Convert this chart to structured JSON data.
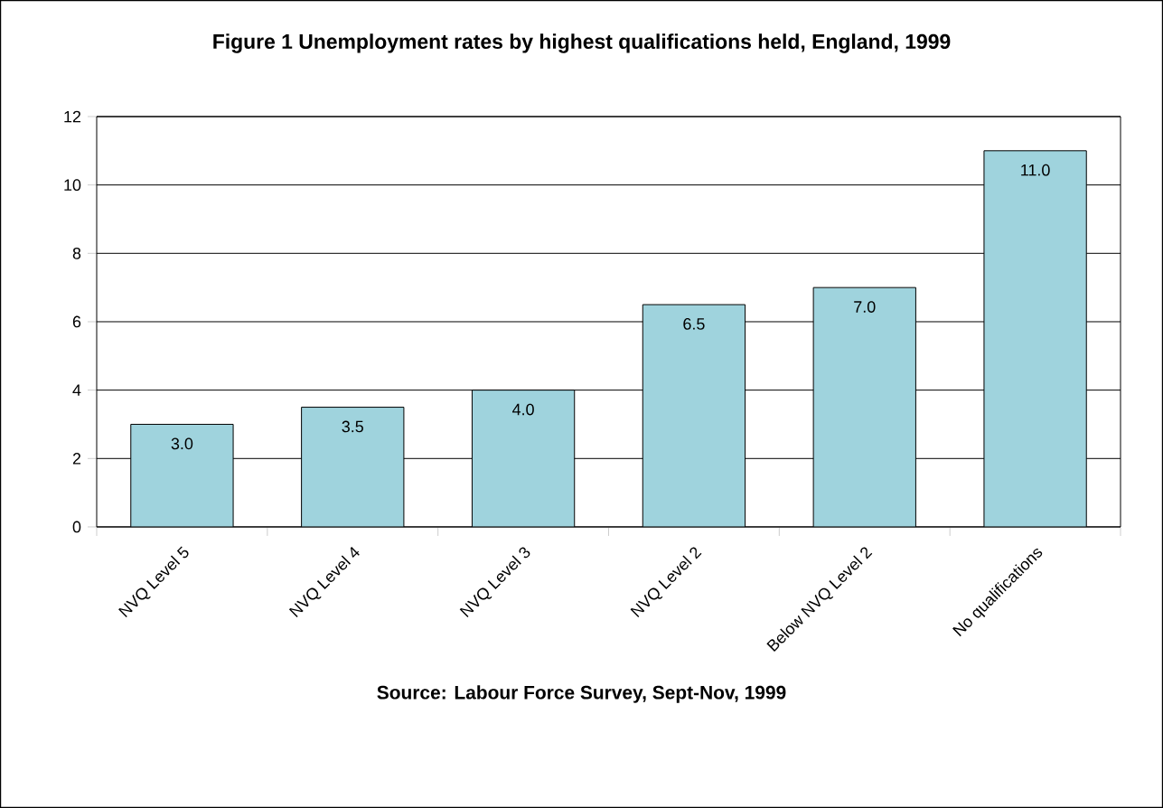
{
  "chart_data": {
    "type": "bar",
    "title": "Figure 1  Unemployment rates by highest qualifications held, England, 1999",
    "categories": [
      "NVQ Level 5",
      "NVQ Level 4",
      "NVQ Level 3",
      "NVQ Level 2",
      "Below NVQ Level 2",
      "No qualifications"
    ],
    "values": [
      3.0,
      3.5,
      4.0,
      6.5,
      7.0,
      11.0
    ],
    "value_labels": [
      "3.0",
      "3.5",
      "4.0",
      "6.5",
      "7.0",
      "11.0"
    ],
    "color": "#9fd3dd",
    "ylim": [
      0,
      12
    ],
    "yticks": [
      0,
      2,
      4,
      6,
      8,
      10,
      12
    ],
    "grid": "y",
    "annotations": [
      "Source: Labour Force Survey, Sept-Nov, 1999"
    ]
  }
}
